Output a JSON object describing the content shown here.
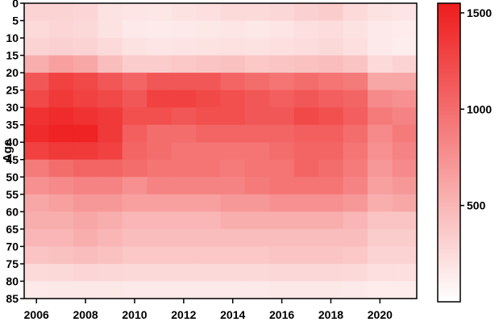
{
  "chart_data": {
    "type": "heatmap",
    "title": "",
    "xlabel": "",
    "ylabel": "Age",
    "x_range": [
      2005.5,
      2021.5
    ],
    "y_range": [
      0,
      85
    ],
    "y_axis_inverted": true,
    "x_ticks": [
      2006,
      2008,
      2010,
      2012,
      2014,
      2016,
      2018,
      2020
    ],
    "x_tick_labels": [
      "2006",
      "2008",
      "2010",
      "2012",
      "2014",
      "2016",
      "2018",
      "2020"
    ],
    "y_ticks": [
      0,
      5,
      10,
      15,
      20,
      25,
      30,
      35,
      40,
      45,
      50,
      55,
      60,
      65,
      70,
      75,
      80,
      85
    ],
    "y_tick_labels": [
      "0",
      "5",
      "10",
      "15",
      "20",
      "25",
      "30",
      "35",
      "40",
      "45",
      "50",
      "55",
      "60",
      "65",
      "70",
      "75",
      "80",
      "85"
    ],
    "years": [
      2006,
      2007,
      2008,
      2009,
      2010,
      2011,
      2012,
      2013,
      2014,
      2015,
      2016,
      2017,
      2018,
      2019,
      2020,
      2021
    ],
    "age_groups": [
      "0",
      "5",
      "10",
      "15",
      "20",
      "25",
      "30",
      "35",
      "40",
      "45",
      "50",
      "55",
      "60",
      "65",
      "70",
      "75",
      "80"
    ],
    "age_bin_width": 5,
    "values": [
      [
        300,
        300,
        280,
        200,
        180,
        170,
        200,
        220,
        250,
        250,
        270,
        320,
        350,
        250,
        200,
        180
      ],
      [
        250,
        280,
        260,
        200,
        150,
        140,
        150,
        160,
        180,
        160,
        180,
        220,
        240,
        200,
        150,
        130
      ],
      [
        300,
        320,
        300,
        250,
        200,
        180,
        190,
        200,
        210,
        200,
        220,
        240,
        260,
        220,
        150,
        120
      ],
      [
        550,
        650,
        600,
        450,
        350,
        350,
        380,
        400,
        420,
        380,
        400,
        420,
        450,
        400,
        250,
        300
      ],
      [
        1150,
        1300,
        1250,
        1150,
        1050,
        1150,
        1150,
        1150,
        1050,
        1000,
        950,
        1000,
        950,
        900,
        600,
        600
      ],
      [
        1250,
        1350,
        1300,
        1250,
        1150,
        1300,
        1300,
        1250,
        1200,
        1150,
        1100,
        1150,
        1100,
        1050,
        800,
        750
      ],
      [
        1400,
        1450,
        1400,
        1350,
        1200,
        1200,
        1150,
        1200,
        1200,
        1150,
        1150,
        1250,
        1200,
        1100,
        900,
        850
      ],
      [
        1450,
        1500,
        1500,
        1350,
        1100,
        1000,
        1000,
        1050,
        1050,
        1050,
        1050,
        1100,
        1100,
        1000,
        800,
        900
      ],
      [
        1300,
        1350,
        1350,
        1300,
        1050,
        1000,
        950,
        950,
        950,
        950,
        1000,
        1050,
        1050,
        950,
        750,
        850
      ],
      [
        900,
        1000,
        1050,
        1050,
        1000,
        950,
        950,
        950,
        900,
        950,
        950,
        1050,
        1000,
        900,
        700,
        800
      ],
      [
        750,
        800,
        850,
        850,
        750,
        850,
        850,
        850,
        850,
        900,
        950,
        950,
        950,
        850,
        650,
        700
      ],
      [
        600,
        650,
        700,
        700,
        650,
        650,
        650,
        650,
        700,
        700,
        750,
        750,
        750,
        700,
        550,
        600
      ],
      [
        550,
        550,
        600,
        550,
        500,
        500,
        500,
        500,
        550,
        550,
        550,
        550,
        550,
        500,
        400,
        400
      ],
      [
        500,
        500,
        550,
        500,
        450,
        450,
        450,
        450,
        450,
        450,
        450,
        450,
        450,
        450,
        350,
        350
      ],
      [
        400,
        420,
        450,
        420,
        380,
        380,
        380,
        380,
        380,
        380,
        400,
        400,
        400,
        380,
        300,
        300
      ],
      [
        250,
        260,
        280,
        270,
        260,
        260,
        260,
        260,
        260,
        260,
        270,
        270,
        270,
        260,
        220,
        220
      ],
      [
        150,
        160,
        160,
        160,
        150,
        150,
        150,
        150,
        150,
        150,
        160,
        160,
        160,
        150,
        130,
        130
      ]
    ],
    "colorbar": {
      "min": 0,
      "max": 1550,
      "ticks": [
        500,
        1000,
        1500
      ],
      "tick_labels": [
        "500",
        "1000",
        "1500"
      ],
      "low_color": "#ffffff",
      "high_color": "#ee1c1c"
    },
    "grid": false,
    "legend": "colorbar-right"
  }
}
